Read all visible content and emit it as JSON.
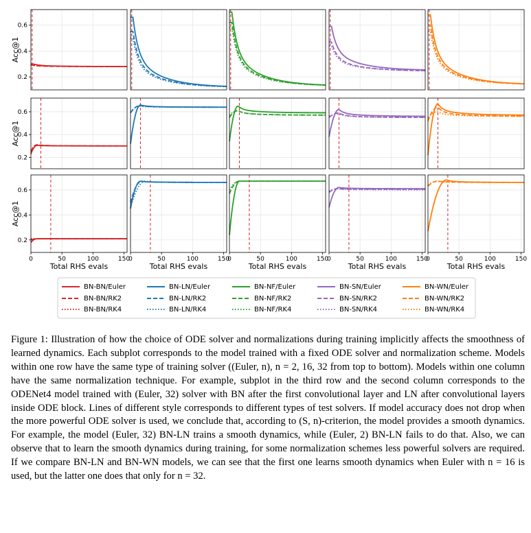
{
  "figure": {
    "ylabel": "Acc@1",
    "xlabel": "Total RHS evals",
    "x_ticks": [
      "0",
      "50",
      "100",
      "150"
    ],
    "y_ticks": [
      "0.2",
      "0.4",
      "0.6"
    ]
  },
  "colors": {
    "BN": "#d62728",
    "LN": "#1f77b4",
    "NF": "#2ca02c",
    "SN": "#9467bd",
    "WN": "#ff7f0e"
  },
  "legend": [
    {
      "label": "BN-BN/Euler",
      "norm": "BN",
      "style": "solid"
    },
    {
      "label": "BN-BN/RK2",
      "norm": "BN",
      "style": "dashed"
    },
    {
      "label": "BN-BN/RK4",
      "norm": "BN",
      "style": "dotted"
    },
    {
      "label": "BN-LN/Euler",
      "norm": "LN",
      "style": "solid"
    },
    {
      "label": "BN-LN/RK2",
      "norm": "LN",
      "style": "dashed"
    },
    {
      "label": "BN-LN/RK4",
      "norm": "LN",
      "style": "dotted"
    },
    {
      "label": "BN-NF/Euler",
      "norm": "NF",
      "style": "solid"
    },
    {
      "label": "BN-NF/RK2",
      "norm": "NF",
      "style": "dashed"
    },
    {
      "label": "BN-NF/RK4",
      "norm": "NF",
      "style": "dotted"
    },
    {
      "label": "BN-SN/Euler",
      "norm": "SN",
      "style": "solid"
    },
    {
      "label": "BN-SN/RK2",
      "norm": "SN",
      "style": "dashed"
    },
    {
      "label": "BN-SN/RK4",
      "norm": "SN",
      "style": "dotted"
    },
    {
      "label": "BN-WN/Euler",
      "norm": "WN",
      "style": "solid"
    },
    {
      "label": "BN-WN/RK2",
      "norm": "WN",
      "style": "dashed"
    },
    {
      "label": "BN-WN/RK4",
      "norm": "WN",
      "style": "dotted"
    }
  ],
  "chart_data": {
    "type": "line",
    "grid": true,
    "xlim": [
      0,
      155
    ],
    "ylim": [
      0.1,
      0.72
    ],
    "columns": [
      "BN",
      "LN",
      "NF",
      "SN",
      "WN"
    ],
    "train_evals": [
      2,
      16,
      32
    ],
    "rows": [
      [
        {
          "euler": {
            "start": 0.3,
            "end": 0.28,
            "peak": 0.3,
            "peak_x": 4
          },
          "rk2": {
            "start": 0.29,
            "end": 0.28,
            "peak": 0.29,
            "peak_x": 4
          },
          "rk4": {
            "start": 0.29,
            "end": 0.28,
            "peak": 0.29,
            "peak_x": 4
          }
        },
        {
          "euler": {
            "start": 0.66,
            "end": 0.12,
            "peak": 0.66,
            "peak_x": 4
          },
          "rk2": {
            "start": 0.55,
            "end": 0.12,
            "peak": 0.55,
            "peak_x": 4
          },
          "rk4": {
            "start": 0.5,
            "end": 0.12,
            "peak": 0.5,
            "peak_x": 4
          }
        },
        {
          "euler": {
            "start": 0.7,
            "end": 0.13,
            "peak": 0.7,
            "peak_x": 4
          },
          "rk2": {
            "start": 0.62,
            "end": 0.13,
            "peak": 0.62,
            "peak_x": 4
          },
          "rk4": {
            "start": 0.58,
            "end": 0.13,
            "peak": 0.58,
            "peak_x": 4
          }
        },
        {
          "euler": {
            "start": 0.59,
            "end": 0.25,
            "peak": 0.59,
            "peak_x": 4
          },
          "rk2": {
            "start": 0.47,
            "end": 0.245,
            "peak": 0.47,
            "peak_x": 4
          },
          "rk4": {
            "start": 0.44,
            "end": 0.245,
            "peak": 0.44,
            "peak_x": 4
          }
        },
        {
          "euler": {
            "start": 0.68,
            "end": 0.14,
            "peak": 0.68,
            "peak_x": 4
          },
          "rk2": {
            "start": 0.6,
            "end": 0.14,
            "peak": 0.6,
            "peak_x": 4
          },
          "rk4": {
            "start": 0.55,
            "end": 0.14,
            "peak": 0.55,
            "peak_x": 4
          }
        }
      ],
      [
        {
          "euler": {
            "start": 0.23,
            "end": 0.3,
            "peak": 0.305,
            "peak_x": 10
          },
          "rk2": {
            "start": 0.25,
            "end": 0.3,
            "peak": 0.31,
            "peak_x": 10
          },
          "rk4": {
            "start": 0.26,
            "end": 0.3,
            "peak": 0.31,
            "peak_x": 10
          }
        },
        {
          "euler": {
            "start": 0.32,
            "end": 0.64,
            "peak": 0.66,
            "peak_x": 16
          },
          "rk2": {
            "start": 0.59,
            "end": 0.64,
            "peak": 0.655,
            "peak_x": 16
          },
          "rk4": {
            "start": 0.6,
            "end": 0.64,
            "peak": 0.65,
            "peak_x": 16
          }
        },
        {
          "euler": {
            "start": 0.34,
            "end": 0.59,
            "peak": 0.65,
            "peak_x": 14
          },
          "rk2": {
            "start": 0.55,
            "end": 0.57,
            "peak": 0.61,
            "peak_x": 14
          },
          "rk4": {
            "start": 0.57,
            "end": 0.57,
            "peak": 0.61,
            "peak_x": 14
          }
        },
        {
          "euler": {
            "start": 0.38,
            "end": 0.56,
            "peak": 0.62,
            "peak_x": 16
          },
          "rk2": {
            "start": 0.55,
            "end": 0.55,
            "peak": 0.59,
            "peak_x": 16
          },
          "rk4": {
            "start": 0.56,
            "end": 0.55,
            "peak": 0.58,
            "peak_x": 16
          }
        },
        {
          "euler": {
            "start": 0.22,
            "end": 0.57,
            "peak": 0.67,
            "peak_x": 16
          },
          "rk2": {
            "start": 0.52,
            "end": 0.56,
            "peak": 0.64,
            "peak_x": 16
          },
          "rk4": {
            "start": 0.55,
            "end": 0.56,
            "peak": 0.6,
            "peak_x": 16
          }
        }
      ],
      [
        {
          "euler": {
            "start": 0.18,
            "end": 0.21,
            "peak": 0.21,
            "peak_x": 10
          },
          "rk2": {
            "start": 0.2,
            "end": 0.21,
            "peak": 0.21,
            "peak_x": 10
          },
          "rk4": {
            "start": 0.21,
            "end": 0.21,
            "peak": 0.21,
            "peak_x": 10
          }
        },
        {
          "euler": {
            "start": 0.45,
            "end": 0.66,
            "peak": 0.67,
            "peak_x": 16
          },
          "rk2": {
            "start": 0.5,
            "end": 0.66,
            "peak": 0.67,
            "peak_x": 18
          },
          "rk4": {
            "start": 0.46,
            "end": 0.66,
            "peak": 0.67,
            "peak_x": 24
          }
        },
        {
          "euler": {
            "start": 0.24,
            "end": 0.67,
            "peak": 0.67,
            "peak_x": 16
          },
          "rk2": {
            "start": 0.57,
            "end": 0.67,
            "peak": 0.67,
            "peak_x": 16
          },
          "rk4": {
            "start": 0.6,
            "end": 0.67,
            "peak": 0.67,
            "peak_x": 16
          }
        },
        {
          "euler": {
            "start": 0.46,
            "end": 0.61,
            "peak": 0.62,
            "peak_x": 16
          },
          "rk2": {
            "start": 0.58,
            "end": 0.605,
            "peak": 0.61,
            "peak_x": 14
          },
          "rk4": {
            "start": 0.59,
            "end": 0.6,
            "peak": 0.61,
            "peak_x": 14
          }
        },
        {
          "euler": {
            "start": 0.27,
            "end": 0.66,
            "peak": 0.68,
            "peak_x": 30
          },
          "rk2": {
            "start": 0.63,
            "end": 0.66,
            "peak": 0.67,
            "peak_x": 16
          },
          "rk4": {
            "start": 0.64,
            "end": 0.66,
            "peak": 0.67,
            "peak_x": 16
          }
        }
      ]
    ]
  },
  "caption": "Figure 1: Illustration of how the choice of ODE solver and normalizations during training implicitly affects the smoothness of learned dynamics. Each subplot corresponds to the model trained with a fixed ODE solver and normalization scheme. Models within one row have the same type of training solver ((Euler, n), n = 2, 16, 32 from top to bottom). Models within one column have the same normalization technique. For example, subplot in the third row and the second column corresponds to the ODENet4 model trained with (Euler, 32) solver with BN after the first convolutional layer and LN after convolutional layers inside ODE block. Lines of different style corresponds to different types of test solvers. If model accuracy does not drop when the more powerful ODE solver is used, we conclude that, according to (S, n)-criterion, the model provides a smooth dynamics. For example, the model (Euler, 32) BN-LN trains a smooth dynamics, while (Euler, 2) BN-LN fails to do that. Also, we can observe that to learn the smooth dynamics during training, for some normalization schemes less powerful solvers are required. If we compare BN-LN and BN-WN models, we can see that the first one learns smooth dynamics when Euler with n = 16 is used, but the latter one does that only for n = 32."
}
